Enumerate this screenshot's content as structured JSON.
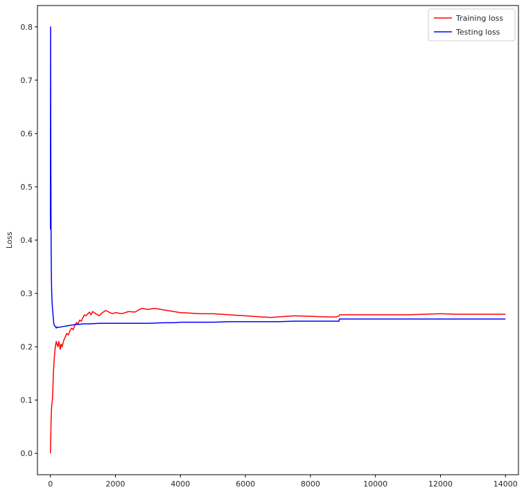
{
  "chart_data": {
    "type": "line",
    "title": "",
    "xlabel": "",
    "ylabel": "Loss",
    "xlim": [
      -400,
      14400
    ],
    "ylim": [
      -0.04,
      0.84
    ],
    "x_ticks": [
      0,
      2000,
      4000,
      6000,
      8000,
      10000,
      12000,
      14000
    ],
    "x_tick_labels": [
      "0",
      "2000",
      "4000",
      "6000",
      "8000",
      "10000",
      "12000",
      "14000"
    ],
    "y_ticks": [
      0.0,
      0.1,
      0.2,
      0.3,
      0.4,
      0.5,
      0.6,
      0.7,
      0.8
    ],
    "y_tick_labels": [
      "0.0",
      "0.1",
      "0.2",
      "0.3",
      "0.4",
      "0.5",
      "0.6",
      "0.7",
      "0.8"
    ],
    "grid": false,
    "legend_position": "top-right",
    "series": [
      {
        "name": "Training loss",
        "color": "#ff0000",
        "x": [
          0,
          10,
          20,
          30,
          40,
          50,
          60,
          70,
          80,
          90,
          100,
          110,
          120,
          150,
          180,
          200,
          230,
          260,
          300,
          330,
          360,
          400,
          430,
          470,
          500,
          550,
          600,
          650,
          700,
          750,
          800,
          850,
          900,
          950,
          1000,
          1050,
          1100,
          1150,
          1200,
          1250,
          1300,
          1400,
          1500,
          1600,
          1700,
          1800,
          1900,
          2000,
          2200,
          2400,
          2600,
          2800,
          3000,
          3200,
          3400,
          3600,
          3800,
          4000,
          4300,
          4600,
          5000,
          5500,
          6000,
          6500,
          6800,
          7000,
          7500,
          8000,
          8500,
          8800,
          8880,
          8900,
          9000,
          9500,
          10000,
          10500,
          11000,
          11500,
          12000,
          12500,
          13000,
          13500,
          14000
        ],
        "y": [
          0.0,
          0.03,
          0.06,
          0.08,
          0.09,
          0.095,
          0.1,
          0.11,
          0.13,
          0.15,
          0.16,
          0.17,
          0.18,
          0.2,
          0.21,
          0.205,
          0.2,
          0.21,
          0.195,
          0.205,
          0.2,
          0.21,
          0.215,
          0.22,
          0.225,
          0.222,
          0.23,
          0.235,
          0.232,
          0.24,
          0.245,
          0.243,
          0.25,
          0.248,
          0.255,
          0.26,
          0.258,
          0.262,
          0.265,
          0.26,
          0.266,
          0.262,
          0.258,
          0.264,
          0.268,
          0.265,
          0.262,
          0.264,
          0.262,
          0.266,
          0.265,
          0.272,
          0.27,
          0.272,
          0.27,
          0.268,
          0.266,
          0.264,
          0.263,
          0.262,
          0.262,
          0.26,
          0.258,
          0.256,
          0.255,
          0.256,
          0.258,
          0.257,
          0.256,
          0.256,
          0.258,
          0.26,
          0.26,
          0.26,
          0.26,
          0.26,
          0.26,
          0.261,
          0.262,
          0.261,
          0.261,
          0.261,
          0.261
        ]
      },
      {
        "name": "Testing loss",
        "color": "#0000ff",
        "x": [
          0,
          5,
          10,
          15,
          20,
          25,
          30,
          40,
          50,
          60,
          80,
          100,
          120,
          150,
          180,
          200,
          250,
          300,
          400,
          500,
          600,
          700,
          800,
          900,
          1000,
          1200,
          1500,
          2000,
          2500,
          3000,
          3500,
          3800,
          4000,
          4500,
          5000,
          5500,
          6000,
          6500,
          7000,
          7500,
          8000,
          8500,
          8880,
          8890,
          9000,
          9500,
          10000,
          11000,
          12000,
          13000,
          14000
        ],
        "y": [
          0.42,
          0.8,
          0.6,
          0.5,
          0.41,
          0.36,
          0.33,
          0.3,
          0.285,
          0.275,
          0.26,
          0.245,
          0.24,
          0.238,
          0.235,
          0.237,
          0.236,
          0.237,
          0.238,
          0.239,
          0.24,
          0.241,
          0.242,
          0.242,
          0.243,
          0.243,
          0.244,
          0.244,
          0.244,
          0.244,
          0.245,
          0.245,
          0.246,
          0.246,
          0.246,
          0.247,
          0.247,
          0.247,
          0.247,
          0.248,
          0.248,
          0.248,
          0.248,
          0.252,
          0.252,
          0.252,
          0.252,
          0.252,
          0.252,
          0.252,
          0.252
        ]
      }
    ]
  }
}
